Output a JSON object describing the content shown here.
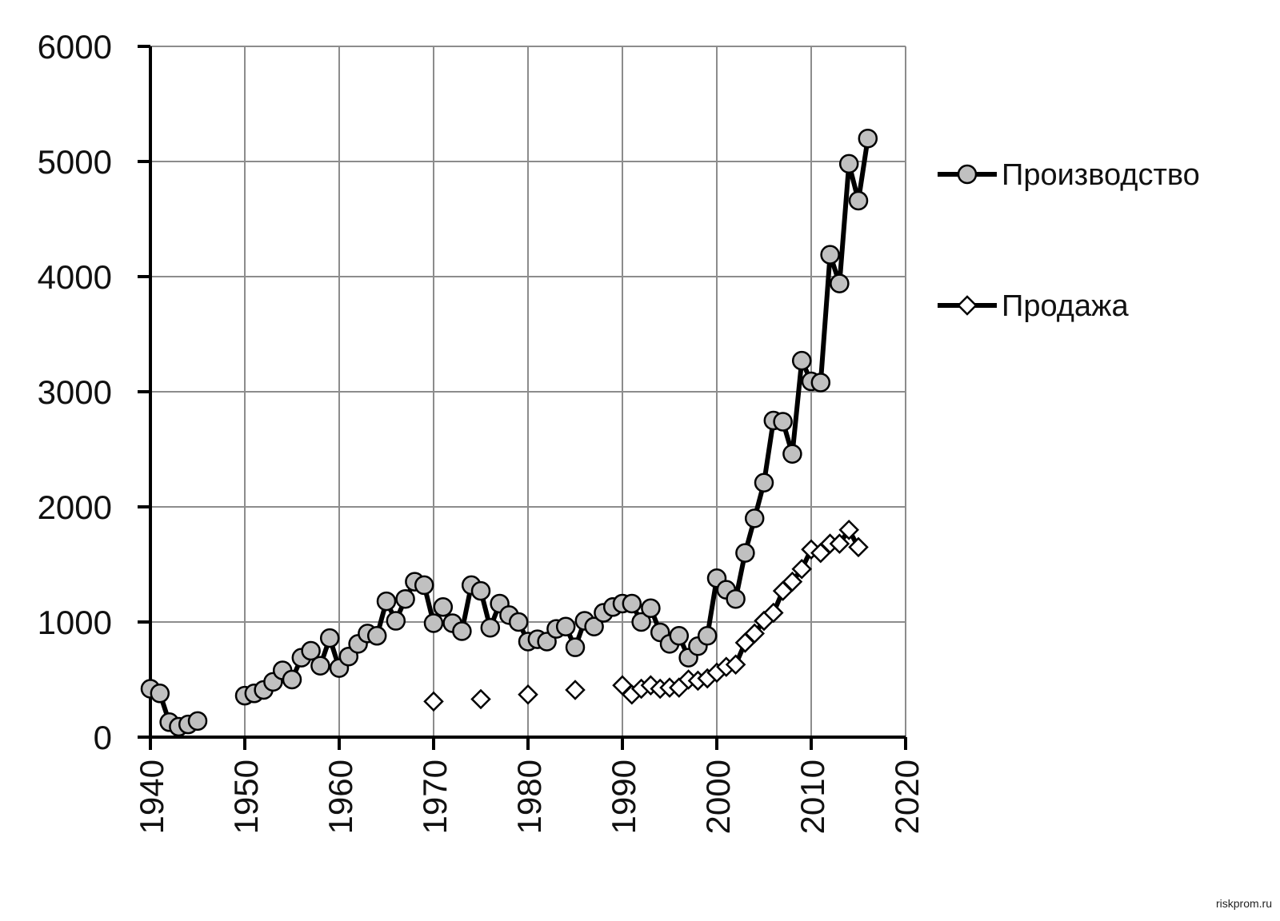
{
  "chart_data": {
    "type": "line",
    "title": "",
    "xlabel": "",
    "ylabel": "",
    "xlim": [
      1940,
      2020
    ],
    "ylim": [
      0,
      6000
    ],
    "x_ticks": [
      1940,
      1950,
      1960,
      1970,
      1980,
      1990,
      2000,
      2010,
      2020
    ],
    "y_ticks": [
      0,
      1000,
      2000,
      3000,
      4000,
      5000,
      6000
    ],
    "grid": true,
    "legend_position": "right",
    "series": [
      {
        "name": "Производство",
        "marker": "circle",
        "line": true,
        "line_color": "#000000",
        "marker_fill": "#c0c0c0",
        "segments": [
          [
            [
              1940,
              420
            ],
            [
              1941,
              380
            ],
            [
              1942,
              130
            ],
            [
              1943,
              90
            ],
            [
              1944,
              110
            ],
            [
              1945,
              140
            ]
          ],
          [
            [
              1950,
              360
            ],
            [
              1951,
              380
            ],
            [
              1952,
              410
            ],
            [
              1953,
              480
            ],
            [
              1954,
              580
            ],
            [
              1955,
              500
            ],
            [
              1956,
              690
            ],
            [
              1957,
              750
            ],
            [
              1958,
              620
            ],
            [
              1959,
              860
            ],
            [
              1960,
              600
            ],
            [
              1961,
              700
            ],
            [
              1962,
              810
            ],
            [
              1963,
              900
            ],
            [
              1964,
              880
            ],
            [
              1965,
              1180
            ],
            [
              1966,
              1010
            ],
            [
              1967,
              1200
            ],
            [
              1968,
              1350
            ],
            [
              1969,
              1320
            ],
            [
              1970,
              990
            ],
            [
              1971,
              1130
            ],
            [
              1972,
              990
            ],
            [
              1973,
              920
            ],
            [
              1974,
              1320
            ],
            [
              1975,
              1270
            ],
            [
              1976,
              950
            ],
            [
              1977,
              1160
            ],
            [
              1978,
              1060
            ],
            [
              1979,
              1000
            ],
            [
              1980,
              830
            ],
            [
              1981,
              850
            ],
            [
              1982,
              830
            ],
            [
              1983,
              940
            ],
            [
              1984,
              960
            ],
            [
              1985,
              780
            ],
            [
              1986,
              1010
            ],
            [
              1987,
              960
            ],
            [
              1988,
              1080
            ],
            [
              1989,
              1130
            ],
            [
              1990,
              1160
            ],
            [
              1991,
              1160
            ],
            [
              1992,
              1000
            ],
            [
              1993,
              1120
            ],
            [
              1994,
              910
            ],
            [
              1995,
              810
            ],
            [
              1996,
              880
            ],
            [
              1997,
              690
            ],
            [
              1998,
              790
            ],
            [
              1999,
              880
            ],
            [
              2000,
              1380
            ],
            [
              2001,
              1280
            ],
            [
              2002,
              1200
            ],
            [
              2003,
              1600
            ],
            [
              2004,
              1900
            ],
            [
              2005,
              2210
            ],
            [
              2006,
              2750
            ],
            [
              2007,
              2740
            ],
            [
              2008,
              2460
            ],
            [
              2009,
              3270
            ],
            [
              2010,
              3090
            ],
            [
              2011,
              3080
            ],
            [
              2012,
              4190
            ],
            [
              2013,
              3940
            ],
            [
              2014,
              4980
            ],
            [
              2015,
              4660
            ],
            [
              2016,
              5200
            ]
          ]
        ]
      },
      {
        "name": "Продажа",
        "marker": "diamond",
        "line": true,
        "line_color": "#000000",
        "marker_fill": "#ffffff",
        "points_only": [
          [
            1970,
            310
          ],
          [
            1975,
            330
          ],
          [
            1980,
            370
          ],
          [
            1985,
            410
          ]
        ],
        "segments": [
          [
            [
              1990,
              450
            ],
            [
              1991,
              370
            ],
            [
              1992,
              420
            ],
            [
              1993,
              450
            ],
            [
              1994,
              420
            ],
            [
              1995,
              430
            ],
            [
              1996,
              430
            ],
            [
              1997,
              500
            ],
            [
              1998,
              490
            ],
            [
              1999,
              510
            ],
            [
              2000,
              560
            ],
            [
              2001,
              610
            ],
            [
              2002,
              630
            ],
            [
              2003,
              820
            ],
            [
              2004,
              900
            ],
            [
              2005,
              1010
            ],
            [
              2006,
              1080
            ],
            [
              2007,
              1270
            ],
            [
              2008,
              1350
            ],
            [
              2009,
              1460
            ],
            [
              2010,
              1630
            ],
            [
              2011,
              1600
            ],
            [
              2012,
              1680
            ],
            [
              2013,
              1680
            ],
            [
              2014,
              1800
            ],
            [
              2015,
              1650
            ]
          ]
        ]
      }
    ]
  },
  "watermark": "riskprom.ru"
}
